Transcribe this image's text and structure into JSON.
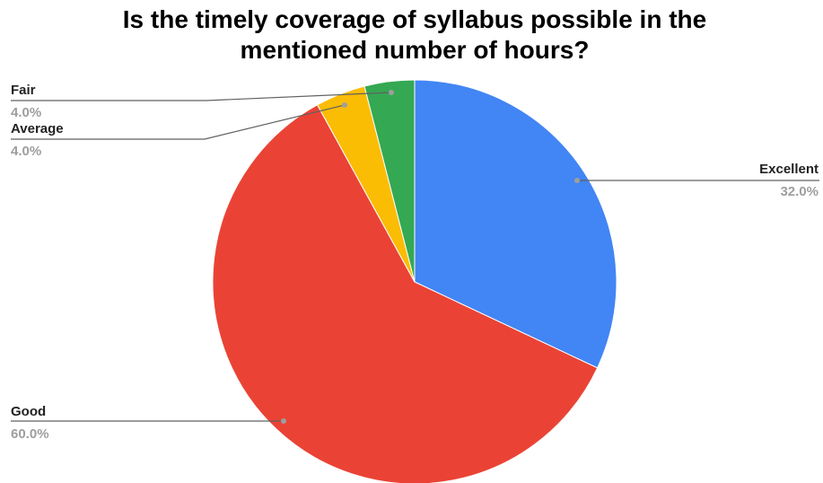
{
  "chart_data": {
    "type": "pie",
    "title_lines": [
      "Is the timely coverage of syllabus possible in the",
      "mentioned number of hours?"
    ],
    "slices": [
      {
        "label": "Excellent",
        "value": 32.0,
        "pct_label": "32.0%",
        "color": "#4285F4"
      },
      {
        "label": "Good",
        "value": 60.0,
        "pct_label": "60.0%",
        "color": "#EA4335"
      },
      {
        "label": "Average",
        "value": 4.0,
        "pct_label": "4.0%",
        "color": "#FBBC04"
      },
      {
        "label": "Fair",
        "value": 4.0,
        "pct_label": "4.0%",
        "color": "#34A853"
      }
    ],
    "start_angle_deg": 0,
    "direction": "clockwise",
    "legend": "none"
  }
}
